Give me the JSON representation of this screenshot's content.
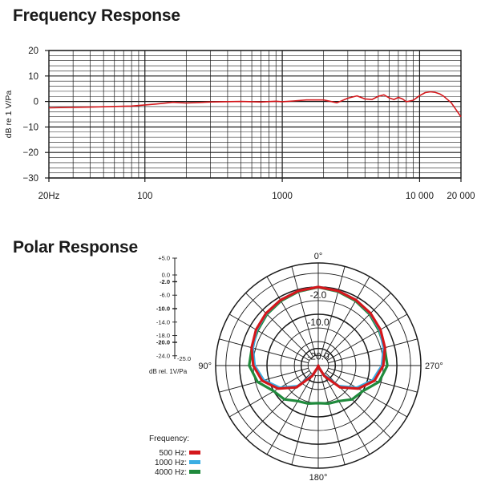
{
  "chart_data": [
    {
      "type": "line",
      "title": "Frequency Response",
      "ylabel": "dB re 1 V/Pa",
      "xlabel": "",
      "xscale": "log",
      "xlim": [
        20,
        20000
      ],
      "ylim": [
        -30,
        20
      ],
      "yticks": [
        "20",
        "10",
        "0",
        "−10",
        "−20",
        "−30"
      ],
      "xticks": [
        "20Hz",
        "100",
        "1000",
        "10 000",
        "20 000"
      ],
      "grid": true,
      "color": "#d4171b",
      "x": [
        20,
        40,
        80,
        120,
        160,
        200,
        300,
        500,
        700,
        900,
        1000,
        1200,
        1500,
        2000,
        2500,
        3000,
        3500,
        4000,
        4500,
        5000,
        5500,
        6000,
        6500,
        7000,
        7500,
        8000,
        9000,
        10000,
        11000,
        12000,
        13000,
        14000,
        15000,
        17000,
        20000
      ],
      "y": [
        -2.5,
        -2.2,
        -1.8,
        -1.0,
        -0.3,
        -0.6,
        -0.2,
        0.0,
        -0.2,
        0.1,
        -0.1,
        0.2,
        0.6,
        0.6,
        -0.5,
        1.3,
        2.2,
        1.0,
        0.8,
        2.0,
        2.6,
        1.4,
        0.8,
        1.6,
        1.0,
        -0.1,
        0.5,
        2.3,
        3.5,
        3.8,
        3.6,
        3.0,
        2.0,
        -0.5,
        -6.0
      ]
    },
    {
      "type": "polar",
      "title": "Polar Response",
      "scale_labels": [
        "+5.0",
        "0.0",
        "-2.0",
        "-6.0",
        "-10.0",
        "-14.0",
        "-18.0",
        "-20.0",
        "-24.0",
        "-25.0"
      ],
      "scale_bold": [
        "-2.0",
        "-10.0",
        "-20.0"
      ],
      "scale_unit": "dB rel. 1V/Pa",
      "ring_labels": [
        "-2.0",
        "-10.0",
        "-20.0"
      ],
      "angle_labels": {
        "top": "0°",
        "left": "90°",
        "right": "270°",
        "bottom": "180°"
      },
      "legend_title": "Frequency:",
      "angles_deg": [
        0,
        15,
        30,
        45,
        60,
        75,
        90,
        105,
        120,
        135,
        150,
        165,
        180
      ],
      "series": [
        {
          "name": "500 Hz:",
          "color": "#d4171b",
          "values": [
            -2.0,
            -2.4,
            -2.9,
            -3.4,
            -4.0,
            -4.8,
            -6.0,
            -8.0,
            -11.5,
            -16.0,
            -21.5,
            -24.5,
            -25.0
          ]
        },
        {
          "name": "1000 Hz:",
          "color": "#3aaee3",
          "values": [
            -2.0,
            -2.4,
            -2.9,
            -3.5,
            -4.2,
            -5.2,
            -6.4,
            -8.5,
            -12.0,
            -16.5,
            -22.0,
            -24.5,
            -25.0
          ]
        },
        {
          "name": "4000 Hz:",
          "color": "#1f8a3c",
          "values": [
            -2.1,
            -2.6,
            -3.2,
            -3.8,
            -4.5,
            -4.9,
            -4.8,
            -6.6,
            -10.0,
            -11.0,
            -13.0,
            -13.5,
            -14.0
          ]
        }
      ]
    }
  ]
}
